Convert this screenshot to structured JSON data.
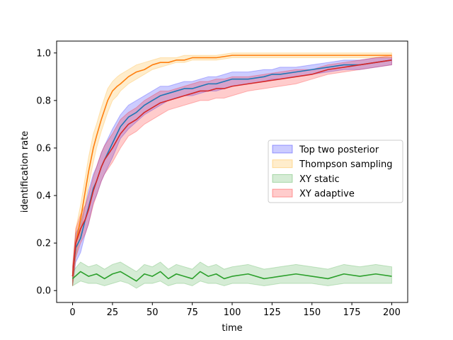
{
  "chart_data": {
    "type": "line",
    "xlabel": "time",
    "ylabel": "identification rate",
    "xlim": [
      -10,
      210
    ],
    "ylim": [
      -0.05,
      1.05
    ],
    "xticks": [
      0,
      25,
      50,
      75,
      100,
      125,
      150,
      175,
      200
    ],
    "yticks": [
      0.0,
      0.2,
      0.4,
      0.6,
      0.8,
      1.0
    ],
    "xtick_labels": [
      "0",
      "25",
      "50",
      "75",
      "100",
      "125",
      "150",
      "175",
      "200"
    ],
    "ytick_labels": [
      "0.0",
      "0.2",
      "0.4",
      "0.6",
      "0.8",
      "1.0"
    ],
    "grid": false,
    "legend_position": "center-right",
    "series": [
      {
        "name": "Top two posterior",
        "color": "#1f77b4",
        "band_color": "#0000ff",
        "x": [
          0,
          2,
          5,
          8,
          10,
          13,
          15,
          18,
          20,
          25,
          30,
          35,
          40,
          45,
          50,
          55,
          60,
          65,
          70,
          75,
          80,
          85,
          90,
          95,
          100,
          110,
          120,
          125,
          130,
          140,
          150,
          160,
          170,
          180,
          190,
          200
        ],
        "y": [
          0.06,
          0.18,
          0.22,
          0.3,
          0.35,
          0.43,
          0.46,
          0.52,
          0.55,
          0.62,
          0.69,
          0.73,
          0.75,
          0.78,
          0.8,
          0.82,
          0.83,
          0.84,
          0.85,
          0.85,
          0.86,
          0.87,
          0.87,
          0.88,
          0.89,
          0.89,
          0.9,
          0.91,
          0.91,
          0.92,
          0.93,
          0.94,
          0.95,
          0.95,
          0.96,
          0.97
        ],
        "lower": [
          0.02,
          0.12,
          0.16,
          0.24,
          0.28,
          0.37,
          0.4,
          0.46,
          0.49,
          0.56,
          0.64,
          0.68,
          0.71,
          0.74,
          0.76,
          0.78,
          0.8,
          0.81,
          0.82,
          0.82,
          0.83,
          0.84,
          0.84,
          0.85,
          0.86,
          0.87,
          0.88,
          0.89,
          0.89,
          0.9,
          0.91,
          0.92,
          0.93,
          0.93,
          0.94,
          0.95
        ],
        "upper": [
          0.1,
          0.24,
          0.28,
          0.36,
          0.42,
          0.49,
          0.52,
          0.58,
          0.61,
          0.68,
          0.74,
          0.78,
          0.8,
          0.82,
          0.84,
          0.86,
          0.86,
          0.87,
          0.88,
          0.88,
          0.89,
          0.9,
          0.9,
          0.91,
          0.92,
          0.92,
          0.93,
          0.93,
          0.94,
          0.94,
          0.95,
          0.96,
          0.97,
          0.97,
          0.98,
          0.98
        ]
      },
      {
        "name": "Thompson sampling",
        "color": "#ff7f0e",
        "band_color": "#ffa500",
        "x": [
          0,
          2,
          5,
          8,
          10,
          13,
          15,
          18,
          20,
          22,
          25,
          28,
          30,
          35,
          40,
          45,
          50,
          55,
          60,
          65,
          70,
          75,
          80,
          85,
          90,
          100,
          110,
          120,
          130,
          140,
          150,
          160,
          170,
          180,
          190,
          200
        ],
        "y": [
          0.06,
          0.2,
          0.3,
          0.42,
          0.5,
          0.6,
          0.65,
          0.72,
          0.76,
          0.8,
          0.84,
          0.86,
          0.87,
          0.9,
          0.92,
          0.93,
          0.95,
          0.96,
          0.96,
          0.97,
          0.97,
          0.98,
          0.98,
          0.98,
          0.98,
          0.99,
          0.99,
          0.99,
          0.99,
          0.99,
          0.99,
          0.99,
          0.99,
          0.99,
          0.99,
          0.99
        ],
        "lower": [
          0.02,
          0.14,
          0.24,
          0.36,
          0.44,
          0.54,
          0.6,
          0.67,
          0.71,
          0.75,
          0.8,
          0.82,
          0.84,
          0.87,
          0.89,
          0.91,
          0.93,
          0.94,
          0.95,
          0.96,
          0.96,
          0.97,
          0.97,
          0.97,
          0.97,
          0.98,
          0.98,
          0.98,
          0.98,
          0.98,
          0.98,
          0.98,
          0.98,
          0.98,
          0.98,
          0.98
        ],
        "upper": [
          0.1,
          0.26,
          0.36,
          0.48,
          0.56,
          0.66,
          0.7,
          0.77,
          0.81,
          0.85,
          0.88,
          0.9,
          0.91,
          0.93,
          0.95,
          0.96,
          0.97,
          0.98,
          0.98,
          0.98,
          0.99,
          0.99,
          0.99,
          0.99,
          0.99,
          1.0,
          1.0,
          1.0,
          1.0,
          1.0,
          1.0,
          1.0,
          1.0,
          1.0,
          1.0,
          1.0
        ]
      },
      {
        "name": "XY static",
        "color": "#2ca02c",
        "band_color": "#2ca02c",
        "x": [
          0,
          5,
          10,
          15,
          20,
          25,
          30,
          35,
          40,
          45,
          50,
          55,
          60,
          65,
          70,
          75,
          80,
          85,
          90,
          95,
          100,
          110,
          120,
          130,
          140,
          150,
          160,
          170,
          180,
          190,
          200
        ],
        "y": [
          0.05,
          0.08,
          0.06,
          0.07,
          0.05,
          0.07,
          0.08,
          0.06,
          0.04,
          0.07,
          0.06,
          0.08,
          0.05,
          0.07,
          0.06,
          0.05,
          0.08,
          0.06,
          0.07,
          0.05,
          0.06,
          0.07,
          0.05,
          0.06,
          0.07,
          0.06,
          0.05,
          0.07,
          0.06,
          0.07,
          0.06
        ],
        "lower": [
          0.02,
          0.04,
          0.03,
          0.03,
          0.02,
          0.03,
          0.04,
          0.03,
          0.01,
          0.03,
          0.03,
          0.04,
          0.02,
          0.03,
          0.03,
          0.02,
          0.04,
          0.03,
          0.03,
          0.02,
          0.03,
          0.03,
          0.02,
          0.03,
          0.03,
          0.03,
          0.02,
          0.03,
          0.03,
          0.03,
          0.03
        ],
        "upper": [
          0.08,
          0.12,
          0.1,
          0.11,
          0.09,
          0.11,
          0.12,
          0.1,
          0.08,
          0.11,
          0.1,
          0.12,
          0.09,
          0.11,
          0.1,
          0.09,
          0.12,
          0.1,
          0.11,
          0.09,
          0.1,
          0.11,
          0.09,
          0.1,
          0.11,
          0.1,
          0.09,
          0.11,
          0.1,
          0.11,
          0.1
        ]
      },
      {
        "name": "XY adaptive",
        "color": "#d62728",
        "band_color": "#ff0000",
        "x": [
          0,
          2,
          5,
          8,
          10,
          13,
          15,
          18,
          20,
          25,
          30,
          35,
          40,
          45,
          50,
          55,
          60,
          65,
          70,
          75,
          80,
          85,
          90,
          95,
          100,
          110,
          120,
          130,
          140,
          150,
          160,
          170,
          180,
          190,
          200
        ],
        "y": [
          0.06,
          0.2,
          0.26,
          0.3,
          0.34,
          0.42,
          0.46,
          0.52,
          0.55,
          0.6,
          0.66,
          0.7,
          0.72,
          0.75,
          0.77,
          0.79,
          0.8,
          0.81,
          0.82,
          0.83,
          0.84,
          0.84,
          0.85,
          0.85,
          0.86,
          0.87,
          0.88,
          0.89,
          0.9,
          0.91,
          0.93,
          0.94,
          0.95,
          0.96,
          0.97
        ],
        "lower": [
          0.02,
          0.14,
          0.2,
          0.24,
          0.28,
          0.36,
          0.4,
          0.46,
          0.49,
          0.54,
          0.6,
          0.65,
          0.67,
          0.7,
          0.72,
          0.74,
          0.76,
          0.77,
          0.78,
          0.79,
          0.8,
          0.8,
          0.81,
          0.81,
          0.82,
          0.84,
          0.85,
          0.86,
          0.87,
          0.89,
          0.91,
          0.92,
          0.93,
          0.94,
          0.95
        ],
        "upper": [
          0.1,
          0.26,
          0.32,
          0.36,
          0.4,
          0.48,
          0.52,
          0.58,
          0.61,
          0.66,
          0.72,
          0.75,
          0.77,
          0.8,
          0.82,
          0.84,
          0.84,
          0.85,
          0.86,
          0.87,
          0.88,
          0.88,
          0.89,
          0.89,
          0.9,
          0.9,
          0.91,
          0.92,
          0.93,
          0.93,
          0.95,
          0.96,
          0.97,
          0.98,
          0.99
        ]
      }
    ]
  }
}
